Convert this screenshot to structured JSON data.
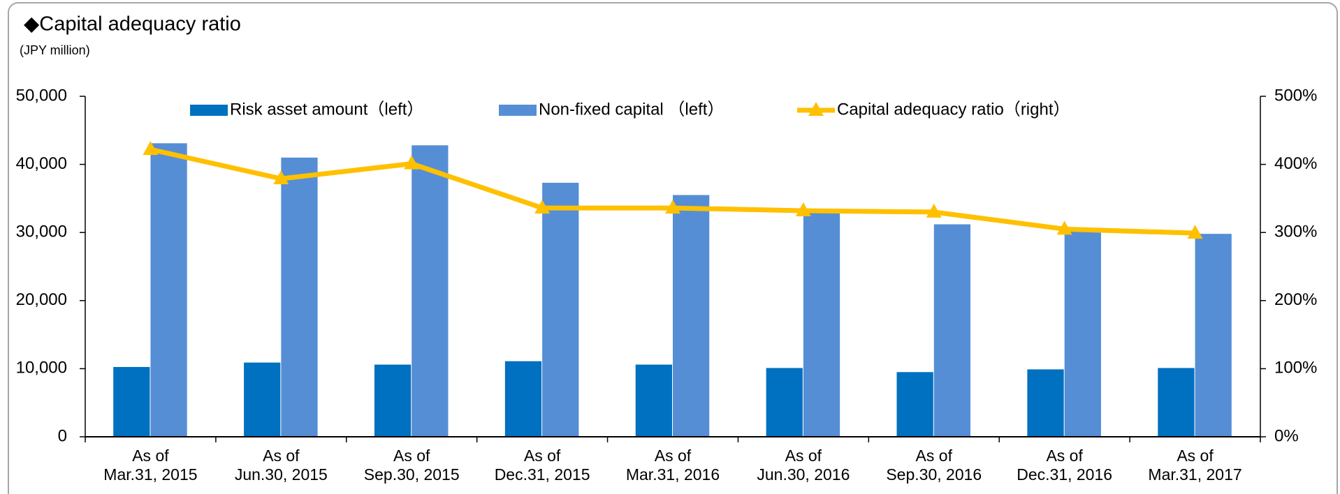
{
  "chart_data": {
    "type": "bar_line",
    "title": "◆Capital adequacy ratio",
    "y_label": "(JPY million)",
    "categories": [
      "As of\nMar.31, 2015",
      "As of\nJun.30, 2015",
      "As of\nSep.30, 2015",
      "As of\nDec.31, 2015",
      "As of\nMar.31, 2016",
      "As of\nJun.30, 2016",
      "As of\nSep.30, 2016",
      "As of\nDec.31, 2016",
      "As of\nMar.31, 2017"
    ],
    "series": [
      {
        "name": "Risk asset amount（left）",
        "type": "bar",
        "color": "#0070c0",
        "values": [
          10250,
          10900,
          10600,
          11100,
          10600,
          10100,
          9500,
          9900,
          10100
        ]
      },
      {
        "name": "Non-fixed  capital （left）",
        "type": "bar",
        "color": "#558ed5",
        "values": [
          43100,
          41000,
          42800,
          37300,
          35500,
          33100,
          31200,
          30300,
          29800
        ]
      },
      {
        "name": "Capital adequacy ratio（right）",
        "type": "line",
        "axis": "y2",
        "color": "#ffc000",
        "values": [
          422,
          379,
          401,
          336,
          336,
          332,
          330,
          305,
          299
        ]
      }
    ],
    "ylim": [
      0,
      50000
    ],
    "yticks": [
      0,
      {
        "value": 10000,
        "label": "10,000"
      },
      {
        "value": 20000,
        "label": "20,000"
      },
      {
        "value": 30000,
        "label": "30,000"
      },
      {
        "value": 40000,
        "label": "40,000"
      },
      {
        "value": 50000,
        "label": "50,000"
      }
    ],
    "y2lim": [
      0,
      500
    ],
    "y2ticks": [
      {
        "value": 0,
        "label": "0%"
      },
      {
        "value": 100,
        "label": "100%"
      },
      {
        "value": 200,
        "label": "200%"
      },
      {
        "value": 300,
        "label": "300%"
      },
      {
        "value": 400,
        "label": "400%"
      },
      {
        "value": 500,
        "label": "500%"
      }
    ],
    "legend": "top"
  }
}
